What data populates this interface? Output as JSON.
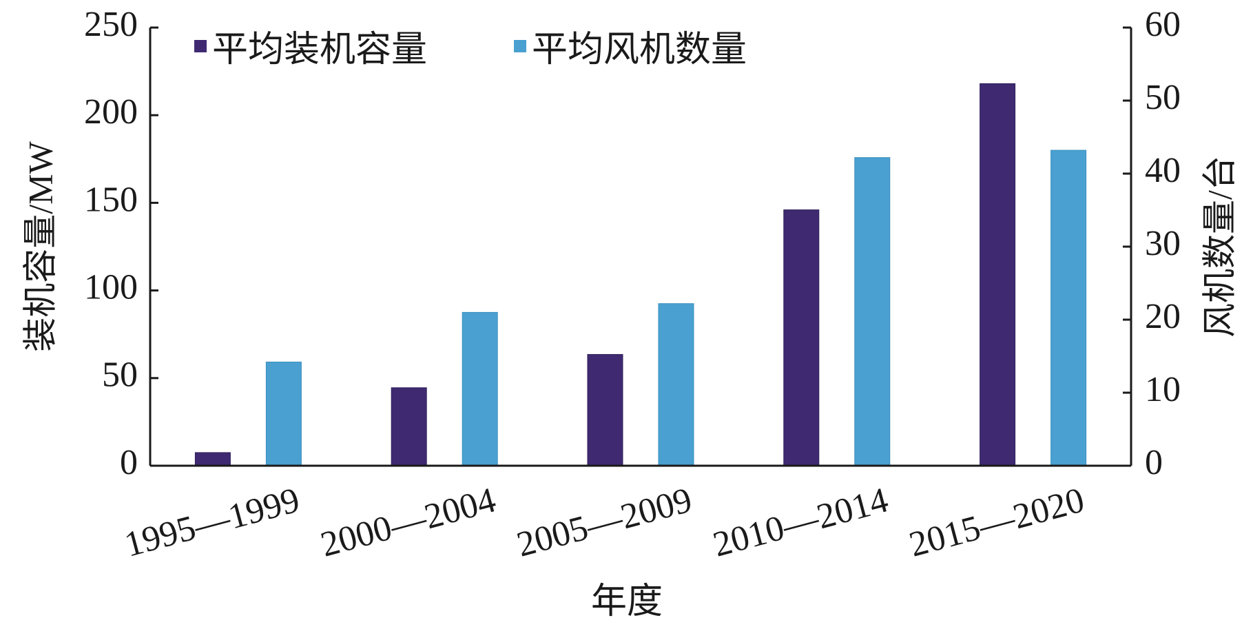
{
  "chart_data": {
    "type": "bar",
    "categories": [
      "1995—1999",
      "2000—2004",
      "2005—2009",
      "2010—2014",
      "2015—2020"
    ],
    "xlabel": "年度",
    "ylabel": "装机容量/MW",
    "y2label": "风机数量/台",
    "ylim": [
      0,
      250
    ],
    "y2lim": [
      0,
      60
    ],
    "yticks": [
      0,
      50,
      100,
      150,
      200,
      250
    ],
    "y2ticks": [
      0,
      10,
      20,
      30,
      40,
      50,
      60
    ],
    "grid": false,
    "legend_position": "top-left",
    "series": [
      {
        "name": "平均装机容量",
        "axis": "left",
        "color": "#3f2a72",
        "values": [
          7.5,
          44.5,
          63.5,
          146,
          218
        ]
      },
      {
        "name": "平均风机数量",
        "axis": "right",
        "color": "#4aa0d0",
        "values": [
          14.2,
          21,
          22.2,
          42.2,
          43.2
        ]
      }
    ]
  }
}
